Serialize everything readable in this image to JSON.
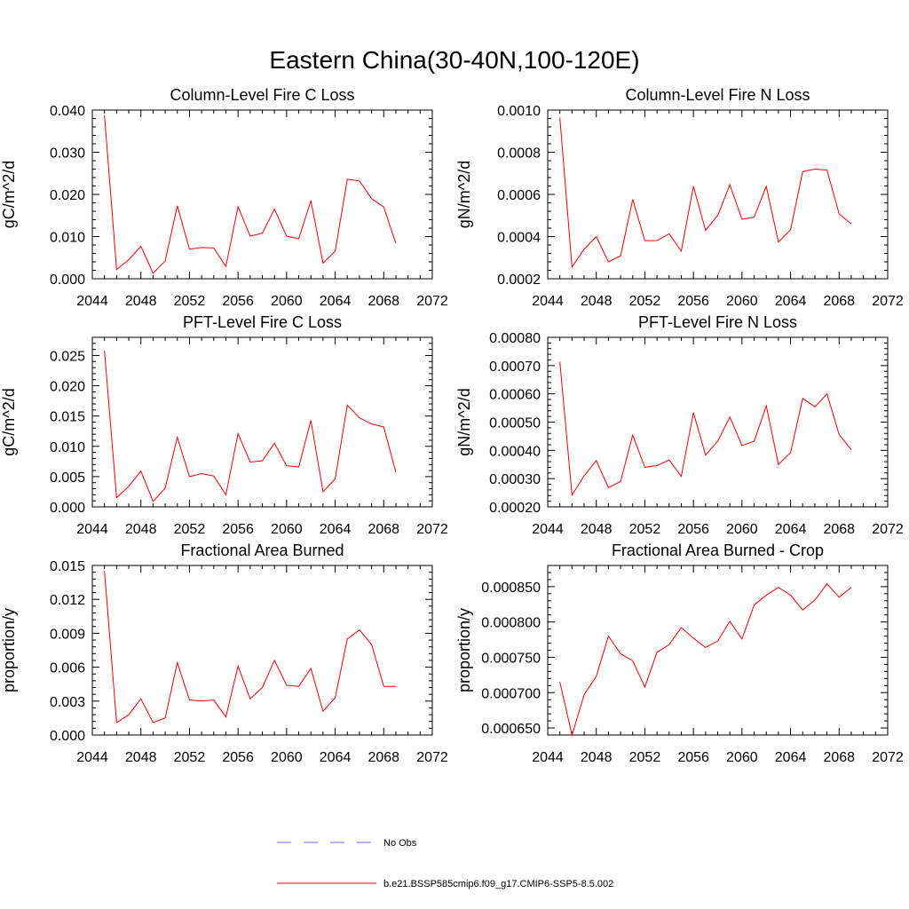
{
  "figure_title": "Eastern China(30-40N,100-120E)",
  "colors": {
    "model_line": "#ff0000",
    "obs_line": "#6a6aff",
    "axis": "#000000"
  },
  "legend": [
    {
      "label": "No Obs",
      "style": "dashed",
      "color": "#6a6aff"
    },
    {
      "label": "b.e21.BSSP585cmip6.f09_g17.CMIP6-SSP5-8.5.002",
      "style": "solid",
      "color": "#ff0000"
    }
  ],
  "chart_data": [
    {
      "type": "line",
      "title": "Column-Level Fire C Loss",
      "ylabel": "gC/m^2/d",
      "xlim": [
        2044,
        2072
      ],
      "xticks": [
        "2044",
        "2048",
        "2052",
        "2056",
        "2060",
        "2064",
        "2068",
        "2072"
      ],
      "ylim": [
        0,
        0.04
      ],
      "yticks": [
        "0.000",
        "0.010",
        "0.020",
        "0.030",
        "0.040"
      ],
      "x": [
        2045,
        2046,
        2047,
        2048,
        2049,
        2050,
        2051,
        2052,
        2053,
        2054,
        2055,
        2056,
        2057,
        2058,
        2059,
        2060,
        2061,
        2062,
        2063,
        2064,
        2065,
        2066,
        2067,
        2068,
        2069
      ],
      "series": [
        {
          "values": [
            0.0388,
            0.0022,
            0.0045,
            0.0077,
            0.0013,
            0.0042,
            0.0173,
            0.007,
            0.0074,
            0.0073,
            0.0029,
            0.0171,
            0.0101,
            0.0108,
            0.0165,
            0.0101,
            0.0095,
            0.0185,
            0.0037,
            0.0065,
            0.0236,
            0.0232,
            0.019,
            0.017,
            0.0084
          ]
        }
      ]
    },
    {
      "type": "line",
      "title": "Column-Level Fire N Loss",
      "ylabel": "gN/m^2/d",
      "xlim": [
        2044,
        2072
      ],
      "xticks": [
        "2044",
        "2048",
        "2052",
        "2056",
        "2060",
        "2064",
        "2068",
        "2072"
      ],
      "ylim": [
        0.0002,
        0.001
      ],
      "yticks": [
        "0.0002",
        "0.0004",
        "0.0006",
        "0.0008",
        "0.0010"
      ],
      "x": [
        2045,
        2046,
        2047,
        2048,
        2049,
        2050,
        2051,
        2052,
        2053,
        2054,
        2055,
        2056,
        2057,
        2058,
        2059,
        2060,
        2061,
        2062,
        2063,
        2064,
        2065,
        2066,
        2067,
        2068,
        2069
      ],
      "series": [
        {
          "values": [
            0.000965,
            0.000256,
            0.00034,
            0.0004,
            0.00028,
            0.000308,
            0.000576,
            0.00038,
            0.000381,
            0.000413,
            0.000331,
            0.000638,
            0.00043,
            0.0005,
            0.000646,
            0.000482,
            0.000492,
            0.000638,
            0.000374,
            0.000433,
            0.000708,
            0.00072,
            0.000715,
            0.000508,
            0.00046
          ]
        }
      ]
    },
    {
      "type": "line",
      "title": "PFT-Level Fire C Loss",
      "ylabel": "gC/m^2/d",
      "xlim": [
        2044,
        2072
      ],
      "xticks": [
        "2044",
        "2048",
        "2052",
        "2056",
        "2060",
        "2064",
        "2068",
        "2072"
      ],
      "ylim": [
        0,
        0.028
      ],
      "yticks": [
        "0.000",
        "0.005",
        "0.010",
        "0.015",
        "0.020",
        "0.025"
      ],
      "x": [
        2045,
        2046,
        2047,
        2048,
        2049,
        2050,
        2051,
        2052,
        2053,
        2054,
        2055,
        2056,
        2057,
        2058,
        2059,
        2060,
        2061,
        2062,
        2063,
        2064,
        2065,
        2066,
        2067,
        2068,
        2069
      ],
      "series": [
        {
          "values": [
            0.0258,
            0.0015,
            0.0034,
            0.0059,
            0.0009,
            0.0031,
            0.0115,
            0.005,
            0.0055,
            0.0051,
            0.002,
            0.0121,
            0.0074,
            0.0076,
            0.0105,
            0.0068,
            0.0066,
            0.0143,
            0.0025,
            0.0046,
            0.0168,
            0.0147,
            0.0137,
            0.0132,
            0.0057
          ]
        }
      ]
    },
    {
      "type": "line",
      "title": "PFT-Level Fire N Loss",
      "ylabel": "gN/m^2/d",
      "xlim": [
        2044,
        2072
      ],
      "xticks": [
        "2044",
        "2048",
        "2052",
        "2056",
        "2060",
        "2064",
        "2068",
        "2072"
      ],
      "ylim": [
        0.0002,
        0.0008
      ],
      "yticks": [
        "0.00020",
        "0.00030",
        "0.00040",
        "0.00050",
        "0.00060",
        "0.00070",
        "0.00080"
      ],
      "x": [
        2045,
        2046,
        2047,
        2048,
        2049,
        2050,
        2051,
        2052,
        2053,
        2054,
        2055,
        2056,
        2057,
        2058,
        2059,
        2060,
        2061,
        2062,
        2063,
        2064,
        2065,
        2066,
        2067,
        2068,
        2069
      ],
      "series": [
        {
          "values": [
            0.000714,
            0.000242,
            0.00031,
            0.000364,
            0.000268,
            0.00029,
            0.000454,
            0.00034,
            0.000346,
            0.000366,
            0.000308,
            0.000534,
            0.000383,
            0.000432,
            0.000518,
            0.000417,
            0.000432,
            0.000558,
            0.00035,
            0.000392,
            0.000584,
            0.000554,
            0.0006,
            0.000456,
            0.000402
          ]
        }
      ]
    },
    {
      "type": "line",
      "title": "Fractional Area Burned",
      "ylabel": "proportion/y",
      "xlim": [
        2044,
        2072
      ],
      "xticks": [
        "2044",
        "2048",
        "2052",
        "2056",
        "2060",
        "2064",
        "2068",
        "2072"
      ],
      "ylim": [
        0,
        0.015
      ],
      "yticks": [
        "0.000",
        "0.003",
        "0.006",
        "0.009",
        "0.012",
        "0.015"
      ],
      "x": [
        2045,
        2046,
        2047,
        2048,
        2049,
        2050,
        2051,
        2052,
        2053,
        2054,
        2055,
        2056,
        2057,
        2058,
        2059,
        2060,
        2061,
        2062,
        2063,
        2064,
        2065,
        2066,
        2067,
        2068,
        2069
      ],
      "series": [
        {
          "values": [
            0.0145,
            0.0011,
            0.0018,
            0.0032,
            0.0011,
            0.0015,
            0.0064,
            0.0031,
            0.003,
            0.0031,
            0.0016,
            0.0061,
            0.0032,
            0.0042,
            0.0066,
            0.0044,
            0.0043,
            0.0059,
            0.0021,
            0.0033,
            0.0085,
            0.0093,
            0.008,
            0.0043,
            0.0043
          ]
        }
      ]
    },
    {
      "type": "line",
      "title": "Fractional Area Burned - Crop",
      "ylabel": "proportion/y",
      "xlim": [
        2044,
        2072
      ],
      "xticks": [
        "2044",
        "2048",
        "2052",
        "2056",
        "2060",
        "2064",
        "2068",
        "2072"
      ],
      "ylim": [
        0.00064,
        0.00088
      ],
      "yticks": [
        "0.000650",
        "0.000700",
        "0.000750",
        "0.000800",
        "0.000850"
      ],
      "x": [
        2045,
        2046,
        2047,
        2048,
        2049,
        2050,
        2051,
        2052,
        2053,
        2054,
        2055,
        2056,
        2057,
        2058,
        2059,
        2060,
        2061,
        2062,
        2063,
        2064,
        2065,
        2066,
        2067,
        2068,
        2069
      ],
      "series": [
        {
          "values": [
            0.000715,
            0.00064,
            0.000697,
            0.000723,
            0.00078,
            0.000755,
            0.000745,
            0.000708,
            0.000757,
            0.000768,
            0.000792,
            0.000777,
            0.000764,
            0.000773,
            0.000801,
            0.000776,
            0.000824,
            0.000838,
            0.000849,
            0.000838,
            0.000817,
            0.000831,
            0.000854,
            0.000835,
            0.000849
          ]
        }
      ]
    }
  ]
}
